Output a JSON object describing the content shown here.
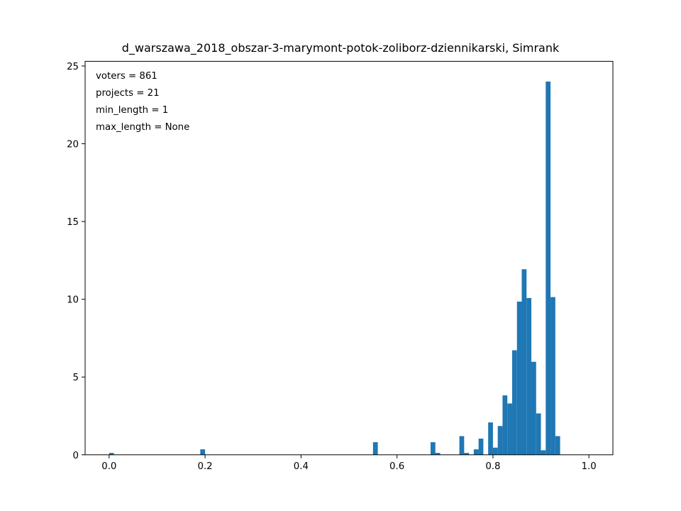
{
  "chart_data": {
    "type": "bar",
    "title": "d_warszawa_2018_obszar-3-marymont-potok-zoliborz-dziennikarski, Simrank",
    "xlabel": "",
    "ylabel": "",
    "xlim": [
      -0.05,
      1.05
    ],
    "ylim": [
      0,
      25.3
    ],
    "xticks": [
      0.0,
      0.2,
      0.4,
      0.6,
      0.8,
      1.0
    ],
    "xtick_labels": [
      "0.0",
      "0.2",
      "0.4",
      "0.6",
      "0.8",
      "1.0"
    ],
    "yticks": [
      0,
      5,
      10,
      15,
      20,
      25
    ],
    "ytick_labels": [
      "0",
      "5",
      "10",
      "15",
      "20",
      "25"
    ],
    "grid": false,
    "bar_color": "#1f77b4",
    "bin_width": 0.01,
    "series": [
      {
        "values": [
          {
            "x": 0.0,
            "y": 0.12
          },
          {
            "x": 0.19,
            "y": 0.35
          },
          {
            "x": 0.55,
            "y": 0.81
          },
          {
            "x": 0.67,
            "y": 0.81
          },
          {
            "x": 0.68,
            "y": 0.12
          },
          {
            "x": 0.73,
            "y": 1.2
          },
          {
            "x": 0.74,
            "y": 0.12
          },
          {
            "x": 0.76,
            "y": 0.35
          },
          {
            "x": 0.77,
            "y": 1.04
          },
          {
            "x": 0.79,
            "y": 2.08
          },
          {
            "x": 0.8,
            "y": 0.46
          },
          {
            "x": 0.81,
            "y": 1.85
          },
          {
            "x": 0.82,
            "y": 3.82
          },
          {
            "x": 0.83,
            "y": 3.3
          },
          {
            "x": 0.84,
            "y": 6.72
          },
          {
            "x": 0.85,
            "y": 9.85
          },
          {
            "x": 0.86,
            "y": 11.93
          },
          {
            "x": 0.87,
            "y": 10.08
          },
          {
            "x": 0.88,
            "y": 5.98
          },
          {
            "x": 0.89,
            "y": 2.66
          },
          {
            "x": 0.9,
            "y": 0.29
          },
          {
            "x": 0.91,
            "y": 24.0
          },
          {
            "x": 0.92,
            "y": 10.14
          },
          {
            "x": 0.93,
            "y": 1.2
          }
        ]
      }
    ],
    "annotations": [
      "voters = 861",
      "projects = 21",
      "min_length = 1",
      "max_length = None"
    ]
  }
}
